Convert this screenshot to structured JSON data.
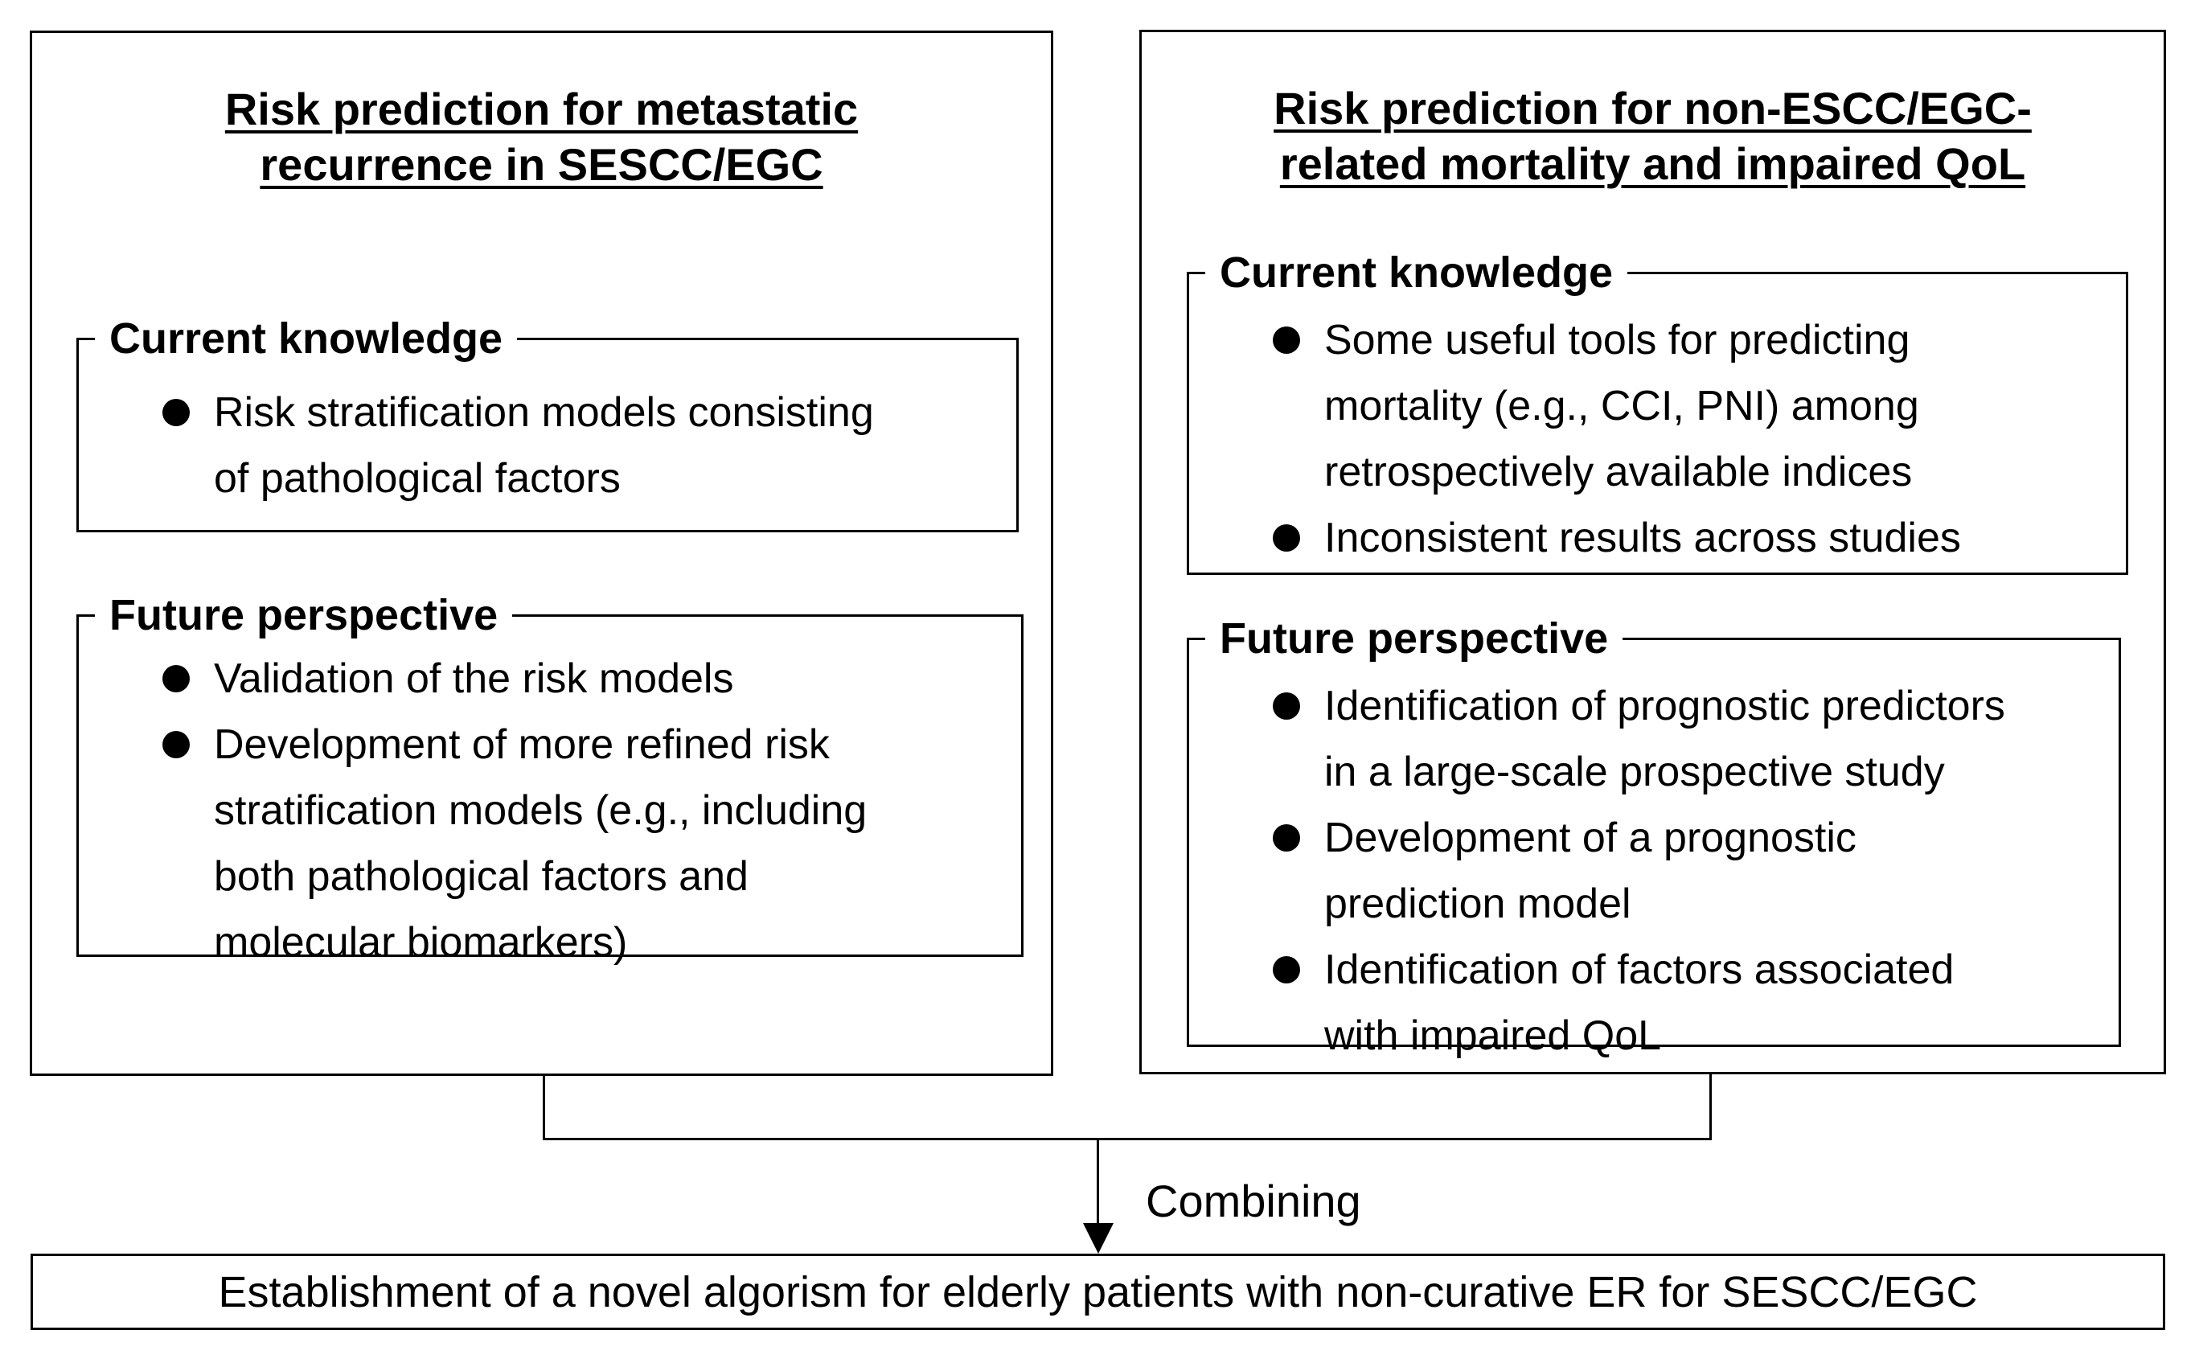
{
  "colors": {
    "ink": "#000000",
    "background": "#ffffff"
  },
  "panels": {
    "left": {
      "title": "Risk prediction for metastatic recurrence in SESCC/EGC",
      "title_lines": [
        "Risk prediction for metastatic",
        "recurrence in SESCC/EGC"
      ],
      "sections": [
        {
          "heading": "Current knowledge",
          "bullets": [
            "Risk stratification models consisting of pathological factors"
          ]
        },
        {
          "heading": "Future perspective",
          "bullets": [
            "Validation of the risk models",
            "Development of more refined risk stratification models (e.g., including both pathological factors and molecular biomarkers)"
          ]
        }
      ]
    },
    "right": {
      "title": "Risk prediction for non-ESCC/EGC-related mortality and impaired QoL",
      "title_lines": [
        "Risk prediction for non-ESCC/EGC-",
        "related mortality and impaired QoL"
      ],
      "sections": [
        {
          "heading": "Current knowledge",
          "bullets": [
            "Some useful tools for predicting mortality (e.g., CCI, PNI) among retrospectively available indices",
            "Inconsistent results across studies"
          ]
        },
        {
          "heading": "Future perspective",
          "bullets": [
            "Identification of prognostic predictors in a large-scale prospective study",
            "Development of a prognostic prediction model",
            "Identification of factors associated with impaired QoL"
          ]
        }
      ]
    }
  },
  "connector": {
    "label": "Combining"
  },
  "outcome": {
    "text": "Establishment of a novel algorism for elderly patients with non-curative ER for SESCC/EGC"
  }
}
